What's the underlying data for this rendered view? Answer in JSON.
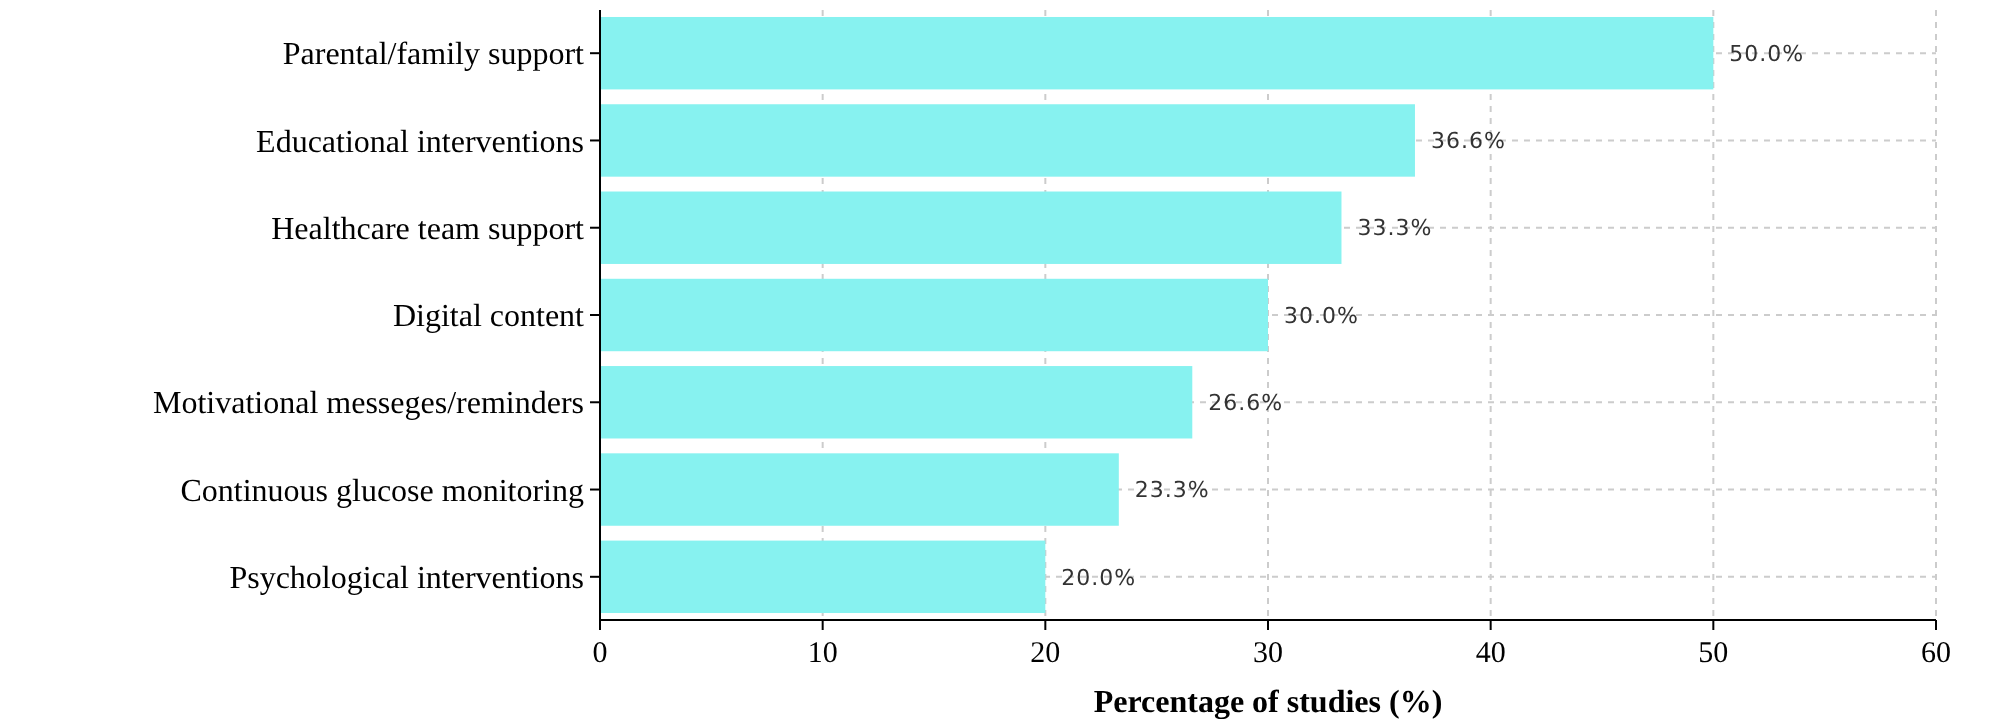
{
  "chart_data": {
    "type": "bar",
    "orientation": "horizontal",
    "xlabel": "Percentage of studies (%)",
    "categories": [
      "Parental/family support",
      "Educational interventions",
      "Healthcare team support",
      "Digital content",
      "Motivational messeges/reminders",
      "Continuous glucose monitoring",
      "Psychological interventions"
    ],
    "values": [
      50.0,
      36.6,
      33.3,
      30.0,
      26.6,
      23.3,
      20.0
    ],
    "value_labels": [
      "50.0%",
      "36.6%",
      "33.3%",
      "30.0%",
      "26.6%",
      "23.3%",
      "20.0%"
    ],
    "color": "#87f2f0",
    "xlim": [
      0,
      60
    ],
    "xticks": [
      0,
      10,
      20,
      30,
      40,
      50,
      60
    ],
    "grid": true
  }
}
